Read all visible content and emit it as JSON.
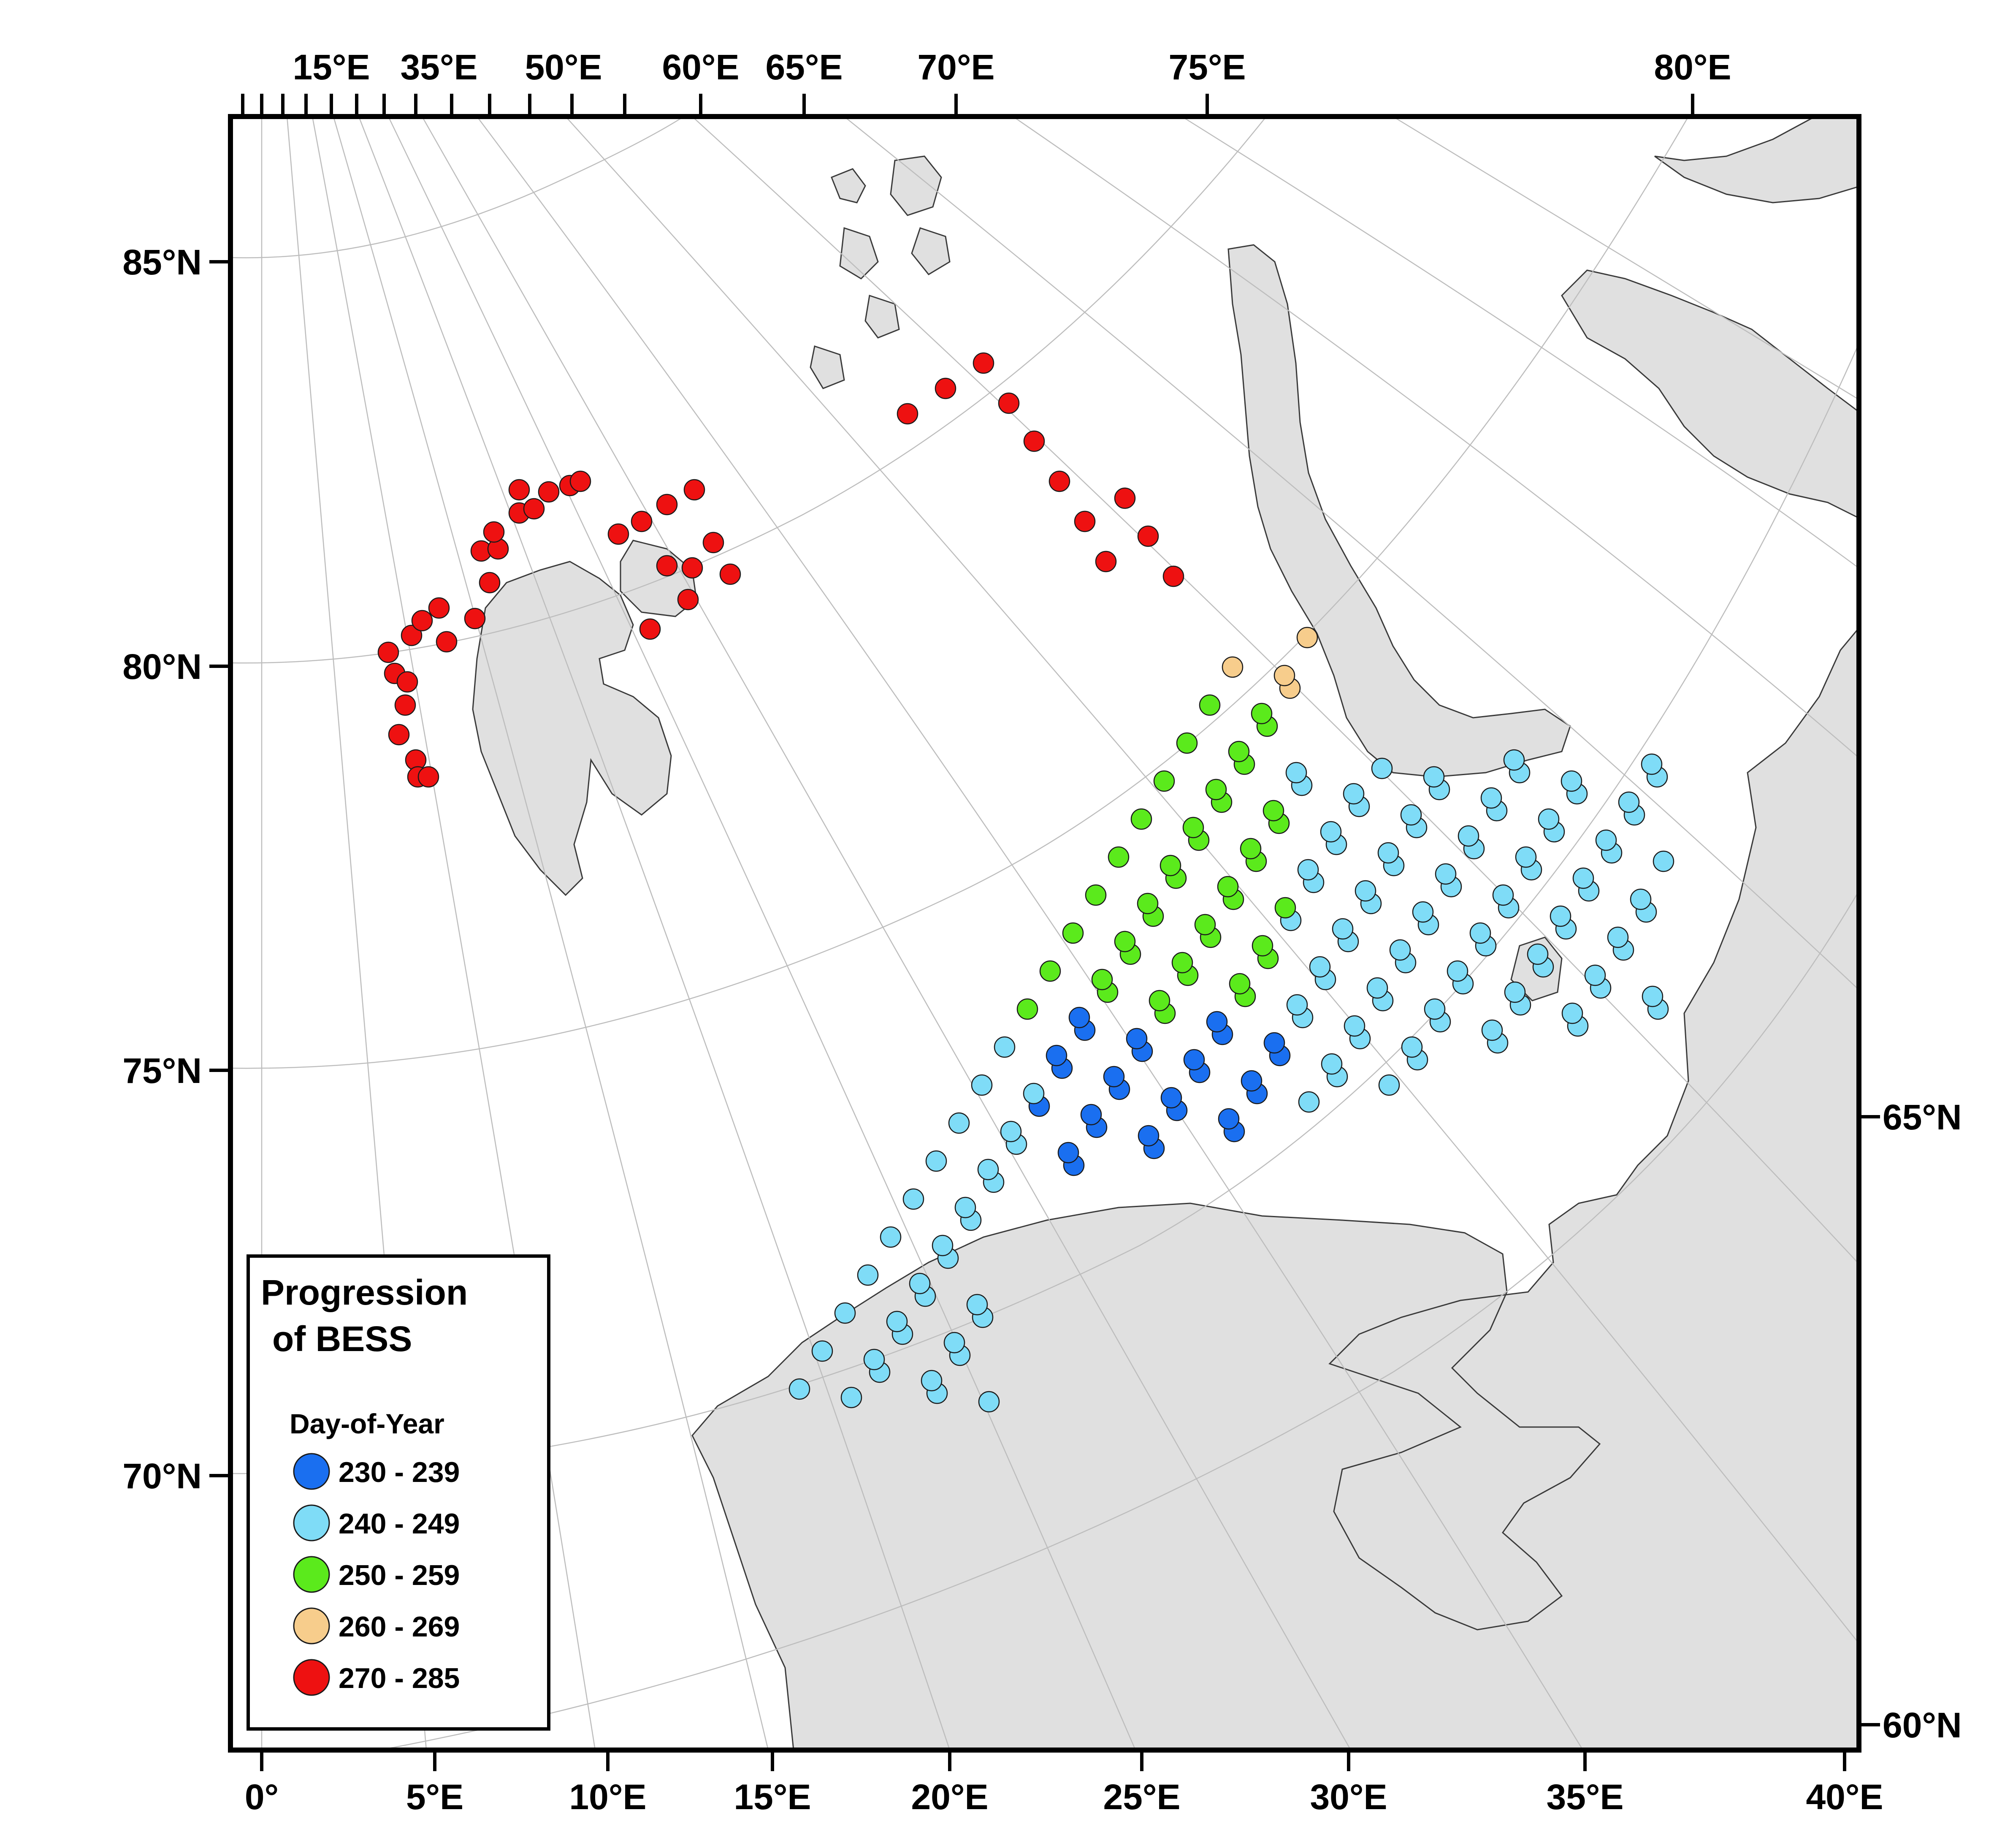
{
  "map": {
    "top_lon_labels": [
      "15°E",
      "35°E",
      "50°E",
      "60°E",
      "65°E",
      "70°E",
      "75°E",
      "80°E"
    ],
    "left_lat_labels": [
      "85°N",
      "80°N",
      "75°N",
      "70°N"
    ],
    "right_lat_labels": [
      "65°N",
      "60°N"
    ],
    "bottom_lon_labels": [
      "0°",
      "5°E",
      "10°E",
      "15°E",
      "20°E",
      "25°E",
      "30°E",
      "35°E",
      "40°E"
    ],
    "colors": {
      "land": "#e0e0e0",
      "sea": "#ffffff",
      "grid": "#bdbdbd",
      "frame": "#000000"
    }
  },
  "legend": {
    "title_line1": "Progression",
    "title_line2": "of BESS",
    "subtitle": "Day-of-Year",
    "items": [
      {
        "label": "230 - 239",
        "color": "#1a6ff0"
      },
      {
        "label": "240 - 249",
        "color": "#7fdcf7"
      },
      {
        "label": "250 - 259",
        "color": "#5bea1c"
      },
      {
        "label": "260 - 269",
        "color": "#f7cd8c"
      },
      {
        "label": "270 - 285",
        "color": "#ee1111"
      }
    ]
  }
}
